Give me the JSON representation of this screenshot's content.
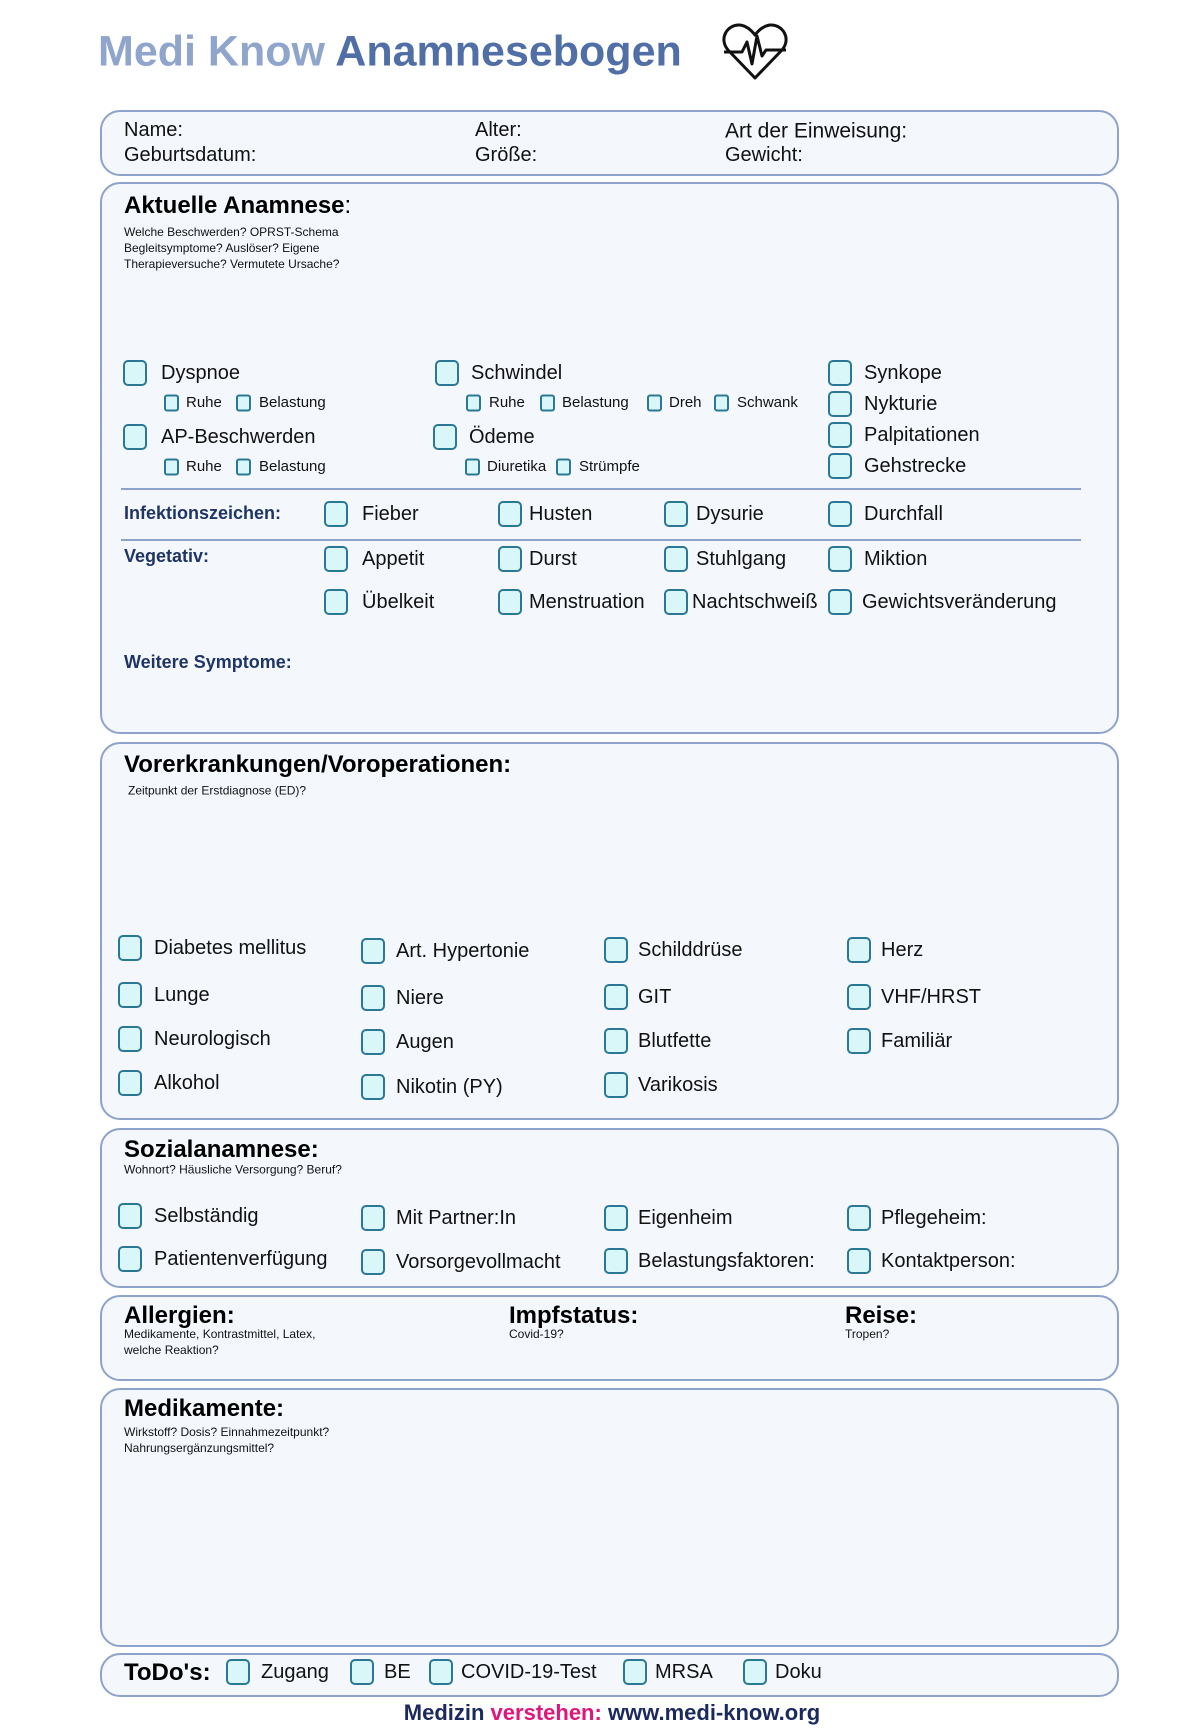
{
  "header": {
    "brand": "Medi Know",
    "title": "Anamnesebogen",
    "icon": "heart-pulse-icon"
  },
  "patient": {
    "name": "Name:",
    "birth": "Geburtsdatum:",
    "age": "Alter:",
    "height": "Größe:",
    "referral": "Art der Einweisung:",
    "weight": "Gewicht:"
  },
  "current": {
    "title": "Aktuelle Anamnese",
    "colon": ":",
    "hint": [
      "Welche Beschwerden? OPRST-Schema",
      "Begleitsymptome? Auslöser? Eigene",
      "Therapieversuche? Vermutete Ursache?"
    ],
    "dyspnoe": "Dyspnoe",
    "dyspnoe_sub": [
      "Ruhe",
      "Belastung"
    ],
    "ap": "AP-Beschwerden",
    "ap_sub": [
      "Ruhe",
      "Belastung"
    ],
    "schwindel": "Schwindel",
    "schwindel_sub": [
      "Ruhe",
      "Belastung",
      "Dreh",
      "Schwank"
    ],
    "oedeme": "Ödeme",
    "oedeme_sub": [
      "Diuretika",
      "Strümpfe"
    ],
    "right": [
      "Synkope",
      "Nykturie",
      "Palpitationen",
      "Gehstrecke"
    ],
    "infection_label": "Infektionszeichen:",
    "infection": [
      "Fieber",
      "Husten",
      "Dysurie",
      "Durchfall"
    ],
    "vegetative_label": "Vegetativ:",
    "vegetative": [
      "Appetit",
      "Durst",
      "Stuhlgang",
      "Miktion",
      "Übelkeit",
      "Menstruation",
      "Nachtschweiß",
      "Gewichtsveränderung"
    ],
    "more": "Weitere Symptome:"
  },
  "history": {
    "title": "Vorerkrankungen/Voroperationen:",
    "hint": "Zeitpunkt der Erstdiagnose (ED)?",
    "items": [
      "Diabetes mellitus",
      "Lunge",
      "Neurologisch",
      "Alkohol",
      "Art. Hypertonie",
      "Niere",
      "Augen",
      "Nikotin (PY)",
      "Schilddrüse",
      "GIT",
      "Blutfette",
      "Varikosis",
      "Herz",
      "VHF/HRST",
      "Familiär"
    ]
  },
  "social": {
    "title": "Sozialanamnese:",
    "hint": "Wohnort? Häusliche Versorgung? Beruf?",
    "items": [
      "Selbständig",
      "Patientenverfügung",
      "Mit Partner:In",
      "Vorsorgevollmacht",
      "Eigenheim",
      "Belastungsfaktoren:",
      "Pflegeheim:",
      "Kontaktperson:"
    ]
  },
  "allergies": {
    "title": "Allergien:",
    "hint": [
      "Medikamente, Kontrastmittel, Latex,",
      "welche Reaktion?"
    ]
  },
  "vaccination": {
    "title": "Impfstatus:",
    "hint": "Covid-19?"
  },
  "travel": {
    "title": "Reise:",
    "hint": "Tropen?"
  },
  "medication": {
    "title": "Medikamente:",
    "hint": [
      "Wirkstoff? Dosis? Einnahmezeitpunkt?",
      "Nahrungsergänzungsmittel?"
    ]
  },
  "todo": {
    "title": "ToDo's:",
    "items": [
      "Zugang",
      "BE",
      "COVID-19-Test",
      "MRSA",
      "Doku"
    ]
  },
  "footer": {
    "a": "Medizin ",
    "b": "verstehen:",
    "c": " www.medi-know.org"
  },
  "colors": {
    "brand_light": "#8fa5cc",
    "brand": "#4f6fa6",
    "border": "#8ea3cc",
    "checkbox": "#2b7896",
    "label": "#1f3566",
    "accent": "#e0157a",
    "footer": "#1b2a5e"
  }
}
